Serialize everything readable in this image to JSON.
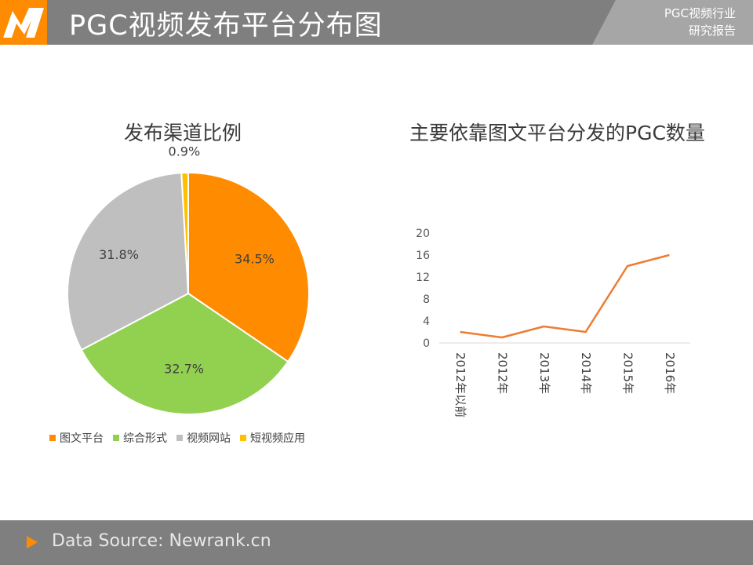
{
  "header": {
    "title": "PGC视频发布平台分布图",
    "report_line1": "PGC视频行业",
    "report_line2": "研究报告"
  },
  "colors": {
    "header_bg": "#7f7f7f",
    "accent": "#ff8c00",
    "line": "#ed7d31"
  },
  "chart_data": [
    {
      "type": "pie",
      "title": "发布渠道比例",
      "slices": [
        {
          "label": "图文平台",
          "value": 34.5,
          "display": "34.5%",
          "color": "#ff8c00"
        },
        {
          "label": "综合形式",
          "value": 32.7,
          "display": "32.7%",
          "color": "#92d050"
        },
        {
          "label": "视频网站",
          "value": 31.8,
          "display": "31.8%",
          "color": "#bfbfbf"
        },
        {
          "label": "短视频应用",
          "value": 0.9,
          "display": "0.9%",
          "color": "#ffc000"
        }
      ],
      "legend_position": "bottom"
    },
    {
      "type": "line",
      "title": "主要依靠图文平台分发的PGC数量",
      "categories": [
        "2012年以前",
        "2012年",
        "2013年",
        "2014年",
        "2015年",
        "2016年"
      ],
      "values": [
        2,
        1,
        3,
        2,
        14,
        16
      ],
      "ylim": [
        0,
        20
      ],
      "yticks": [
        "0",
        "4",
        "8",
        "12",
        "16",
        "20"
      ],
      "grid": false
    }
  ],
  "footer": {
    "source": "Data Source: Newrank.cn"
  }
}
